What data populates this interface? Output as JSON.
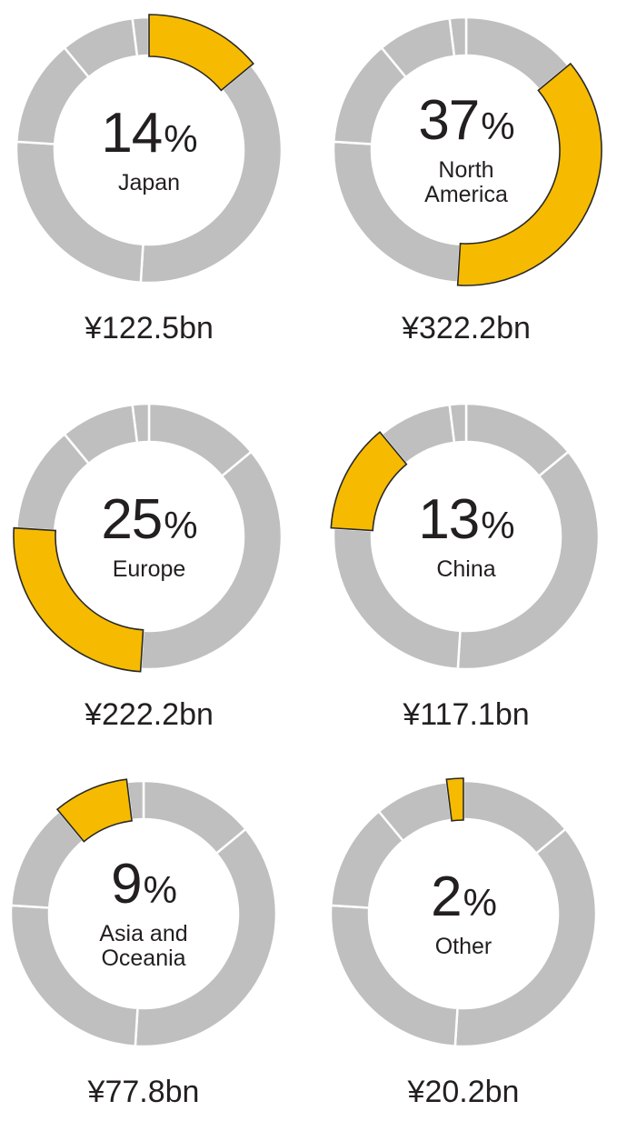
{
  "chart_data": [
    {
      "type": "pie",
      "categories": [
        "Japan",
        "North America",
        "Europe",
        "China",
        "Asia and Oceania",
        "Other"
      ],
      "values": [
        14,
        37,
        25,
        13,
        9,
        2
      ],
      "highlight": "Japan",
      "percent_label": "14",
      "percent_symbol": "%",
      "region_lines": [
        "Japan"
      ],
      "amount": "¥122.5bn",
      "highlight_color": "#f6bb00",
      "base_color": "#bfbfbf"
    },
    {
      "type": "pie",
      "categories": [
        "Japan",
        "North America",
        "Europe",
        "China",
        "Asia and Oceania",
        "Other"
      ],
      "values": [
        14,
        37,
        25,
        13,
        9,
        2
      ],
      "highlight": "North America",
      "percent_label": "37",
      "percent_symbol": "%",
      "region_lines": [
        "North",
        "America"
      ],
      "amount": "¥322.2bn",
      "highlight_color": "#f6bb00",
      "base_color": "#bfbfbf"
    },
    {
      "type": "pie",
      "categories": [
        "Japan",
        "North America",
        "Europe",
        "China",
        "Asia and Oceania",
        "Other"
      ],
      "values": [
        14,
        37,
        25,
        13,
        9,
        2
      ],
      "highlight": "Europe",
      "percent_label": "25",
      "percent_symbol": "%",
      "region_lines": [
        "Europe"
      ],
      "amount": "¥222.2bn",
      "highlight_color": "#f6bb00",
      "base_color": "#bfbfbf"
    },
    {
      "type": "pie",
      "categories": [
        "Japan",
        "North America",
        "Europe",
        "China",
        "Asia and Oceania",
        "Other"
      ],
      "values": [
        14,
        37,
        25,
        13,
        9,
        2
      ],
      "highlight": "China",
      "percent_label": "13",
      "percent_symbol": "%",
      "region_lines": [
        "China"
      ],
      "amount": "¥117.1bn",
      "highlight_color": "#f6bb00",
      "base_color": "#bfbfbf"
    },
    {
      "type": "pie",
      "categories": [
        "Japan",
        "North America",
        "Europe",
        "China",
        "Asia and Oceania",
        "Other"
      ],
      "values": [
        14,
        37,
        25,
        13,
        9,
        2
      ],
      "highlight": "Asia and Oceania",
      "percent_label": "9",
      "percent_symbol": "%",
      "region_lines": [
        "Asia and",
        "Oceania"
      ],
      "amount": "¥77.8bn",
      "highlight_color": "#f6bb00",
      "base_color": "#bfbfbf"
    },
    {
      "type": "pie",
      "categories": [
        "Japan",
        "North America",
        "Europe",
        "China",
        "Asia and Oceania",
        "Other"
      ],
      "values": [
        14,
        37,
        25,
        13,
        9,
        2
      ],
      "highlight": "Other",
      "percent_label": "2",
      "percent_symbol": "%",
      "region_lines": [
        "Other"
      ],
      "amount": "¥20.2bn",
      "highlight_color": "#f6bb00",
      "base_color": "#bfbfbf"
    }
  ]
}
